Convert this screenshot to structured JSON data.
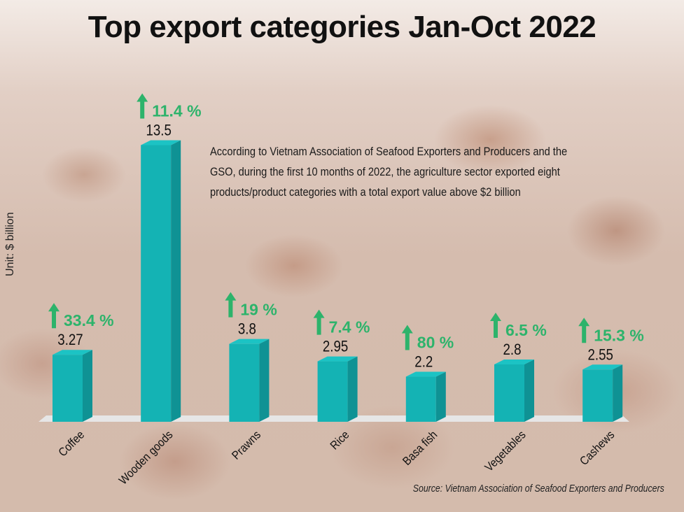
{
  "title": "Top export categories Jan-Oct 2022",
  "note": "According to Vietnam Association of Seafood Exporters and Producers and the GSO, during the first 10 months of 2022, the agriculture sector exported eight products/product categories with a total export value above $2 billion",
  "source": "Source: Vietnam Association of Seafood Exporters and Producers",
  "colors": {
    "bar": "#14b3b4",
    "bar_side": "#0f9294",
    "growth": "#2db36b",
    "baseline": "#e6e6e6"
  },
  "chart_data": {
    "type": "bar",
    "title": "Top export categories Jan-Oct 2022",
    "ylabel": "Unit: $ billion",
    "categories": [
      "Coffee",
      "Wooden goods",
      "Prawns",
      "Rice",
      "Basa fish",
      "Vegetables",
      "Cashews"
    ],
    "values": [
      3.27,
      13.5,
      3.8,
      2.95,
      2.2,
      2.8,
      2.55
    ],
    "value_labels": [
      "3.27",
      "13.5",
      "3.8",
      "2.95",
      "2.2",
      "2.8",
      "2.55"
    ],
    "growth_labels": [
      "33.4 %",
      "11.4 %",
      "19 %",
      "7.4 %",
      "80 %",
      "6.5 %",
      "15.3 %"
    ],
    "growth_icon": "arrow-up-icon",
    "grid": false
  }
}
